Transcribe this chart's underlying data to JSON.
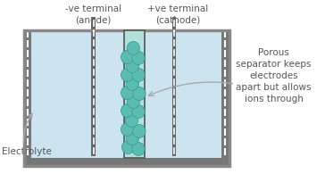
{
  "bg_color": "#ffffff",
  "tank_fill": "#cce4f0",
  "tank_border": "#888888",
  "wall_color": "#777777",
  "electrode_color": "#666666",
  "separator_fill": "#b2e0da",
  "separator_border": "#555555",
  "dot_fill": "#5bbcb2",
  "dot_edge": "#3a9e96",
  "arrow_color": "#aaaaaa",
  "text_color": "#555555",
  "title_anode": "-ve terminal\n(anode)",
  "title_cathode": "+ve terminal\n(cathode)",
  "label_electrolyte": "Electrolyte",
  "label_separator": "Porous\nseparator keeps\nelectrodes\napart but allows\nions through",
  "font_size_header": 7.5,
  "font_size_label": 7.5,
  "fig_w": 3.64,
  "fig_h": 2.05,
  "dpi": 100
}
